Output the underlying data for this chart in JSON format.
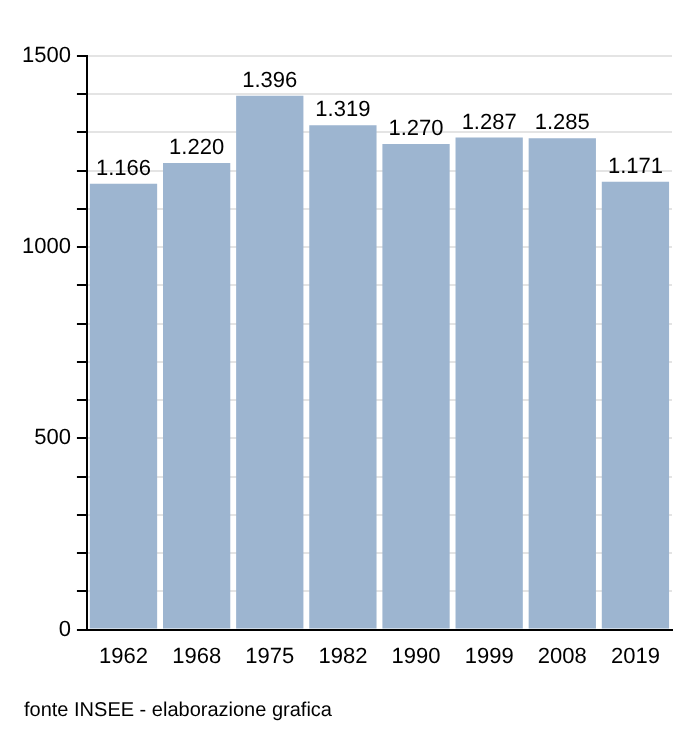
{
  "chart_data": {
    "type": "bar",
    "categories": [
      "1962",
      "1968",
      "1975",
      "1982",
      "1990",
      "1999",
      "2008",
      "2019"
    ],
    "values": [
      1166,
      1220,
      1396,
      1319,
      1270,
      1287,
      1285,
      1171
    ],
    "value_labels": [
      "1.166",
      "1.220",
      "1.396",
      "1.319",
      "1.270",
      "1.287",
      "1.285",
      "1.171"
    ],
    "color": "#9db5d0",
    "ylim": [
      0,
      1500
    ],
    "yticks": [
      0,
      {
        "value": 100,
        "label": null
      },
      {
        "value": 200,
        "label": null
      },
      {
        "value": 300,
        "label": null
      },
      {
        "value": 400,
        "label": null
      },
      500,
      {
        "value": 600,
        "label": null
      },
      {
        "value": 700,
        "label": null
      },
      {
        "value": 800,
        "label": null
      },
      {
        "value": 900,
        "label": null
      },
      1000,
      {
        "value": 1100,
        "label": null
      },
      {
        "value": 1200,
        "label": null
      },
      {
        "value": 1300,
        "label": null
      },
      {
        "value": 1400,
        "label": null
      },
      1500
    ],
    "grid": "y",
    "annotations": [
      "fonte INSEE - elaborazione grafica"
    ]
  }
}
